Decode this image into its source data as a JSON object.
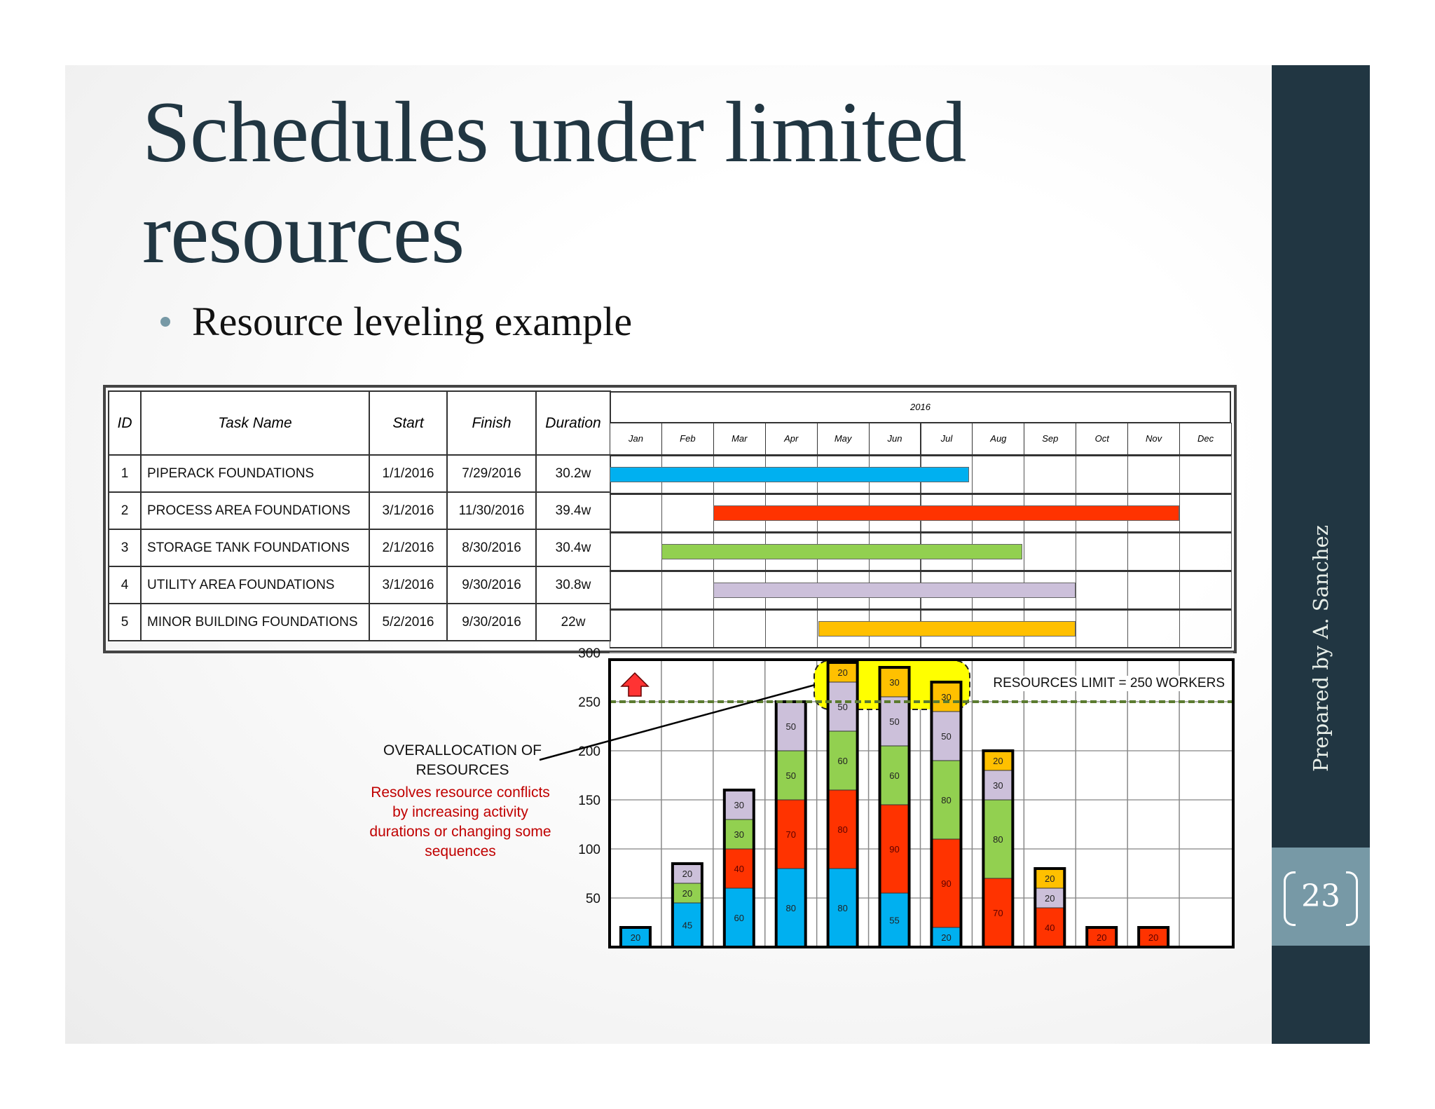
{
  "title_lines": [
    "Schedules under limited",
    "resources"
  ],
  "bullet": "Resource leveling example",
  "sidebar": {
    "author": "Prepared by A. Sanchez",
    "page_number": "23"
  },
  "table": {
    "headers": {
      "id": "ID",
      "task": "Task Name",
      "start": "Start",
      "finish": "Finish",
      "duration": "Duration",
      "year": "2016"
    },
    "months": [
      "Jan",
      "Feb",
      "Mar",
      "Apr",
      "May",
      "Jun",
      "Jul",
      "Aug",
      "Sep",
      "Oct",
      "Nov",
      "Dec"
    ],
    "rows": [
      {
        "id": "1",
        "task": "PIPERACK FOUNDATIONS",
        "start": "1/1/2016",
        "finish": "7/29/2016",
        "duration": "30.2w",
        "color": "#00b0f0"
      },
      {
        "id": "2",
        "task": "PROCESS AREA FOUNDATIONS",
        "start": "3/1/2016",
        "finish": "11/30/2016",
        "duration": "39.4w",
        "color": "#ff3300"
      },
      {
        "id": "3",
        "task": "STORAGE TANK FOUNDATIONS",
        "start": "2/1/2016",
        "finish": "8/30/2016",
        "duration": "30.4w",
        "color": "#92d050"
      },
      {
        "id": "4",
        "task": "UTILITY AREA FOUNDATIONS",
        "start": "3/1/2016",
        "finish": "9/30/2016",
        "duration": "30.8w",
        "color": "#ccc0da"
      },
      {
        "id": "5",
        "task": "MINOR BUILDING FOUNDATIONS",
        "start": "5/2/2016",
        "finish": "9/30/2016",
        "duration": "22w",
        "color": "#ffc000"
      }
    ]
  },
  "annotations": {
    "overallocation": [
      "OVERALLOCATION OF",
      "RESOURCES"
    ],
    "explanation": [
      "Resolves resource conflicts",
      "by increasing activity",
      "durations or changing some",
      "sequences"
    ],
    "limit_label": "RESOURCES LIMIT = 250 WORKERS"
  },
  "chart_data": {
    "type": "bar",
    "stacked": true,
    "categories": [
      "Jan",
      "Feb",
      "Mar",
      "Apr",
      "May",
      "Jun",
      "Jul",
      "Aug",
      "Sep",
      "Oct",
      "Nov",
      "Dec"
    ],
    "yticks": [
      50,
      100,
      150,
      200,
      250,
      300
    ],
    "ylim": [
      0,
      300
    ],
    "grid": true,
    "limit": 250,
    "series": [
      {
        "color": "#00b0f0",
        "values": [
          20,
          45,
          60,
          80,
          80,
          55,
          20,
          0,
          0,
          0,
          0,
          0
        ]
      },
      {
        "color": "#ff3300",
        "values": [
          0,
          0,
          40,
          70,
          80,
          90,
          90,
          70,
          40,
          20,
          20,
          0
        ]
      },
      {
        "color": "#92d050",
        "values": [
          0,
          20,
          30,
          50,
          60,
          60,
          80,
          80,
          0,
          0,
          0,
          0
        ]
      },
      {
        "color": "#ccc0da",
        "values": [
          0,
          20,
          30,
          50,
          50,
          50,
          50,
          30,
          20,
          0,
          0,
          0
        ]
      },
      {
        "color": "#ffc000",
        "values": [
          0,
          0,
          0,
          0,
          20,
          30,
          30,
          20,
          20,
          0,
          0,
          0
        ]
      }
    ],
    "highlight_color": "#ffff00"
  }
}
